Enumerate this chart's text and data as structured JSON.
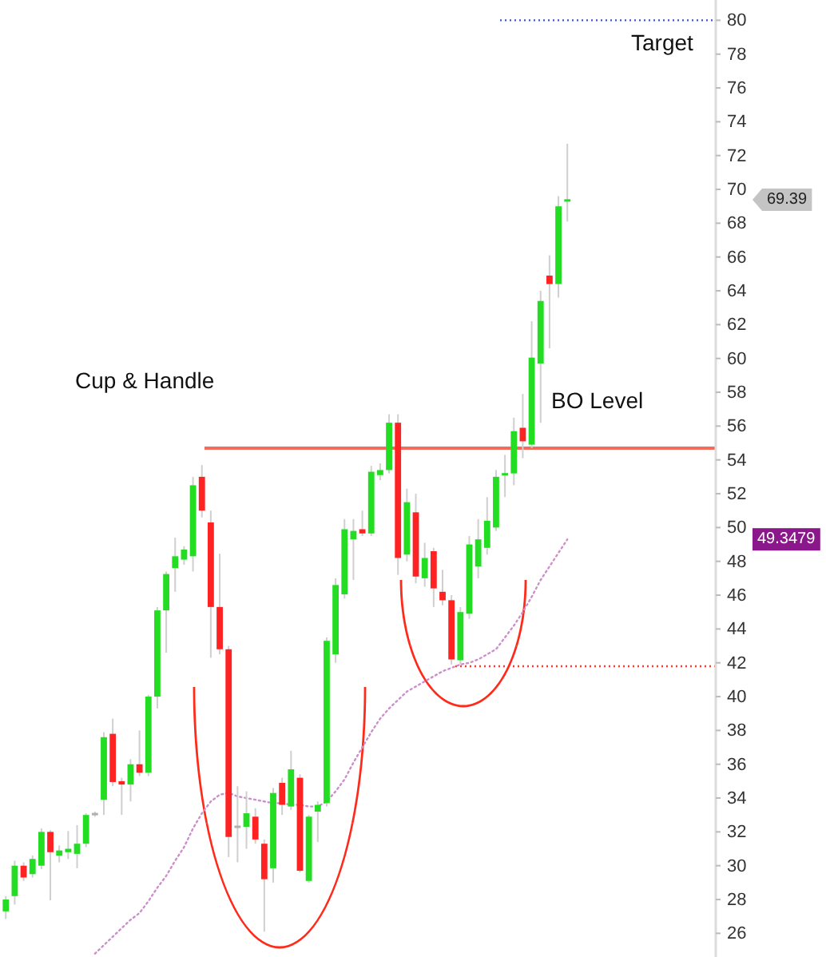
{
  "chart_data": {
    "type": "candlestick",
    "categories": [
      null,
      null,
      null,
      null,
      null,
      null,
      null,
      null,
      null,
      null,
      null,
      null,
      null,
      null,
      null,
      null,
      null,
      null,
      null,
      null,
      null,
      null,
      null,
      null,
      null,
      null,
      null,
      null,
      null,
      null,
      null,
      null,
      null,
      null,
      null,
      null,
      null,
      null,
      null,
      null,
      null,
      null,
      null,
      null,
      null,
      null,
      null,
      null,
      null,
      null,
      null,
      null,
      null,
      null,
      null,
      null,
      null,
      null,
      null,
      null,
      null,
      null,
      null,
      null,
      null,
      null,
      null,
      null,
      null,
      null,
      null,
      null,
      null,
      null,
      null,
      null,
      null,
      null,
      null,
      null
    ],
    "ohlc": [
      [
        27.3,
        28.2,
        26.85,
        28.0
      ],
      [
        28.2,
        30.3,
        27.7,
        30.0
      ],
      [
        30.0,
        30.2,
        29.1,
        29.3
      ],
      [
        29.5,
        30.6,
        29.3,
        30.4
      ],
      [
        30.0,
        32.2,
        29.8,
        32.0
      ],
      [
        32.0,
        32.1,
        27.95,
        30.8
      ],
      [
        30.6,
        31.2,
        30.2,
        30.9
      ],
      [
        30.8,
        32.05,
        30.4,
        31.0
      ],
      [
        30.7,
        32.4,
        29.85,
        31.3
      ],
      [
        31.3,
        33.1,
        31.1,
        33.0
      ],
      [
        33.0,
        33.2,
        32.9,
        33.1
      ],
      [
        33.9,
        37.9,
        33.0,
        37.6
      ],
      [
        37.8,
        38.7,
        34.7,
        34.95
      ],
      [
        35.0,
        35.2,
        33.0,
        34.8
      ],
      [
        34.8,
        36.3,
        33.8,
        36.0
      ],
      [
        36.0,
        38.0,
        35.3,
        35.5
      ],
      [
        35.5,
        40.1,
        35.3,
        40.0
      ],
      [
        40.0,
        45.3,
        39.3,
        45.1
      ],
      [
        45.1,
        47.4,
        42.6,
        47.25
      ],
      [
        47.6,
        49.4,
        46.2,
        48.3
      ],
      [
        48.1,
        48.9,
        47.8,
        48.7
      ],
      [
        48.3,
        53.0,
        47.4,
        52.5
      ],
      [
        53.0,
        53.7,
        50.6,
        51.0
      ],
      [
        50.3,
        51.0,
        42.3,
        45.3
      ],
      [
        45.3,
        48.45,
        42.5,
        42.8
      ],
      [
        42.8,
        43.0,
        30.5,
        31.7
      ],
      [
        32.3,
        34.7,
        30.2,
        32.3
      ],
      [
        32.3,
        34.4,
        31.0,
        33.1
      ],
      [
        32.9,
        33.4,
        31.3,
        31.55
      ],
      [
        31.3,
        31.55,
        26.1,
        29.2
      ],
      [
        29.85,
        34.6,
        29.0,
        34.3
      ],
      [
        34.9,
        35.2,
        33.0,
        33.6
      ],
      [
        33.5,
        36.8,
        33.3,
        35.7
      ],
      [
        35.2,
        35.4,
        29.6,
        29.7
      ],
      [
        29.1,
        33.0,
        29.0,
        32.9
      ],
      [
        33.2,
        33.8,
        31.4,
        33.6
      ],
      [
        33.7,
        43.5,
        33.5,
        43.3
      ],
      [
        42.5,
        47.0,
        42.0,
        46.6
      ],
      [
        46.05,
        50.5,
        45.8,
        49.9
      ],
      [
        49.3,
        50.5,
        46.9,
        49.8
      ],
      [
        49.9,
        51.0,
        49.5,
        49.65
      ],
      [
        49.65,
        53.65,
        49.5,
        53.3
      ],
      [
        53.1,
        53.8,
        52.8,
        53.4
      ],
      [
        53.4,
        56.7,
        53.2,
        56.2
      ],
      [
        56.2,
        56.7,
        47.2,
        48.2
      ],
      [
        48.4,
        52.3,
        48.0,
        51.5
      ],
      [
        50.9,
        52.0,
        46.7,
        47.1
      ],
      [
        47.0,
        49.1,
        46.5,
        48.2
      ],
      [
        48.6,
        48.8,
        45.3,
        46.4
      ],
      [
        46.2,
        47.5,
        45.4,
        45.7
      ],
      [
        45.7,
        46.0,
        41.9,
        42.2
      ],
      [
        42.15,
        45.3,
        41.9,
        45.0
      ],
      [
        44.9,
        49.5,
        44.6,
        49.0
      ],
      [
        47.7,
        50.5,
        47.0,
        49.3
      ],
      [
        48.8,
        51.8,
        48.4,
        50.4
      ],
      [
        50.0,
        53.4,
        49.8,
        53.0
      ],
      [
        53.1,
        54.3,
        51.8,
        53.2
      ],
      [
        53.2,
        56.5,
        52.5,
        55.7
      ],
      [
        55.9,
        57.9,
        54.1,
        55.1
      ],
      [
        54.9,
        62.2,
        54.7,
        60.05
      ],
      [
        59.7,
        64.0,
        56.2,
        63.4
      ],
      [
        64.9,
        66.1,
        60.6,
        64.4
      ],
      [
        64.4,
        69.6,
        63.6,
        69.0
      ],
      [
        69.3,
        72.7,
        68.1,
        69.39
      ],
      null,
      null,
      null,
      null,
      null,
      null,
      null,
      null,
      null,
      null,
      null,
      null,
      null,
      null,
      null,
      null
    ],
    "colors": [
      "#22dd22",
      "#22dd22",
      "#ff2222",
      "#22dd22",
      "#22dd22",
      "#ff2222",
      "#22dd22",
      "#22dd22",
      "#22dd22",
      "#22dd22",
      "#b0b0b0",
      "#22dd22",
      "#ff2222",
      "#ff2222",
      "#22dd22",
      "#ff2222",
      "#22dd22",
      "#22dd22",
      "#22dd22",
      "#22dd22",
      "#22dd22",
      "#22dd22",
      "#ff2222",
      "#ff2222",
      "#ff2222",
      "#ff2222",
      "#b0b0b0",
      "#22dd22",
      "#ff2222",
      "#ff2222",
      "#22dd22",
      "#ff2222",
      "#22dd22",
      "#ff2222",
      "#22dd22",
      "#22dd22",
      "#22dd22",
      "#22dd22",
      "#22dd22",
      "#22dd22",
      "#ff2222",
      "#22dd22",
      "#22dd22",
      "#22dd22",
      "#ff2222",
      "#22dd22",
      "#ff2222",
      "#22dd22",
      "#ff2222",
      "#ff2222",
      "#ff2222",
      "#22dd22",
      "#22dd22",
      "#22dd22",
      "#22dd22",
      "#22dd22",
      "#22dd22",
      "#22dd22",
      "#ff2222",
      "#22dd22",
      "#22dd22",
      "#ff2222",
      "#22dd22",
      "#22dd22",
      null,
      null,
      null,
      null,
      null,
      null,
      null,
      null,
      null,
      null,
      null,
      null,
      null,
      null,
      null,
      null
    ],
    "series": [
      {
        "type": "line",
        "color": "#cc8fcc",
        "line_style": "dotted",
        "values": [
          null,
          null,
          null,
          null,
          null,
          null,
          null,
          null,
          null,
          null,
          24.8,
          25.3,
          25.8,
          26.3,
          26.8,
          27.2,
          27.9,
          28.7,
          29.4,
          30.3,
          31.1,
          32.2,
          33.1,
          33.8,
          34.2,
          34.3,
          34.1,
          34.0,
          33.9,
          33.8,
          33.7,
          33.7,
          33.6,
          33.6,
          33.5,
          33.5,
          33.8,
          34.4,
          35.1,
          36.1,
          37.0,
          37.9,
          38.7,
          39.3,
          39.8,
          40.3,
          40.6,
          40.9,
          41.2,
          41.5,
          41.7,
          41.9,
          42.0,
          42.2,
          42.5,
          42.8,
          43.5,
          44.2,
          45.0,
          45.9,
          46.9,
          47.7,
          48.5,
          49.3,
          null,
          null,
          null,
          null,
          null,
          null,
          null,
          null,
          null,
          null,
          null,
          null,
          null,
          null,
          null,
          null
        ]
      }
    ],
    "ylim": [
      24.6,
      81.2
    ],
    "yticks": [
      26,
      28,
      30,
      32,
      34,
      36,
      38,
      40,
      42,
      44,
      46,
      48,
      50,
      52,
      54,
      56,
      58,
      60,
      62,
      64,
      66,
      68,
      70,
      72,
      74,
      76,
      78,
      80
    ],
    "tick_labels": "y",
    "ref_lines": [
      {
        "axis": "y",
        "value": 54.7,
        "label": "BO Level",
        "color": "#f26b5b"
      },
      {
        "axis": "y",
        "value": 80,
        "label": "Target",
        "color": "#3b4fd8",
        "line_style": "dotted"
      },
      {
        "axis": "y",
        "value": 41.8,
        "color": "#ff3b30",
        "line_style": "dotted"
      }
    ],
    "annotations": [
      "Cup & Handle",
      "69.39",
      "49.3479"
    ]
  }
}
